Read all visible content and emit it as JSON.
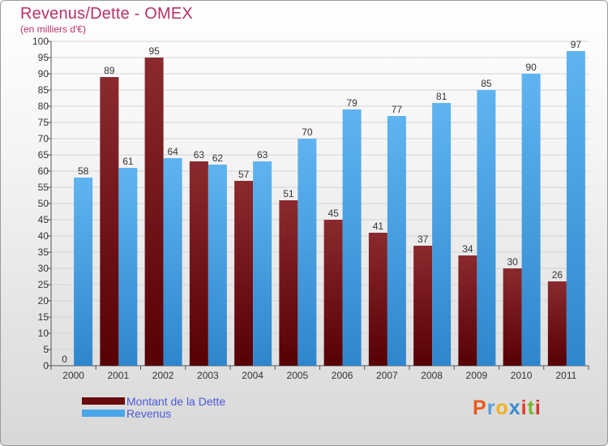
{
  "header": {
    "title": "Revenus/Dette - OMEX",
    "subtitle": "(en milliers d'€)"
  },
  "legend": {
    "items": [
      {
        "label": "Montant de la Dette",
        "color": "#6a0a0e"
      },
      {
        "label": "Revenus",
        "color": "#4aa6e8"
      }
    ]
  },
  "logo": {
    "text": "Proxiti",
    "letter_colors": [
      "#e85a1e",
      "#5aa0d8",
      "#f2b21e",
      "#3a8ad0",
      "#e23a2a",
      "#7ab82e",
      "#d6342e"
    ]
  },
  "chart_data": {
    "type": "bar",
    "title": "Revenus/Dette - OMEX",
    "subtitle": "(en milliers d'€)",
    "xlabel": "",
    "ylabel": "",
    "categories": [
      "2000",
      "2001",
      "2002",
      "2003",
      "2004",
      "2005",
      "2006",
      "2007",
      "2008",
      "2009",
      "2010",
      "2011"
    ],
    "series": [
      {
        "name": "Montant de la Dette",
        "color": "#6a0a0e",
        "values": [
          0,
          89,
          95,
          63,
          57,
          51,
          45,
          41,
          37,
          34,
          30,
          26
        ]
      },
      {
        "name": "Revenus",
        "color": "#4aa6e8",
        "values": [
          58,
          61,
          64,
          62,
          63,
          70,
          79,
          77,
          81,
          85,
          90,
          97
        ]
      }
    ],
    "ylim": [
      0,
      100
    ],
    "y_tick_step": 5,
    "grid": true,
    "legend_position": "bottom-left"
  }
}
